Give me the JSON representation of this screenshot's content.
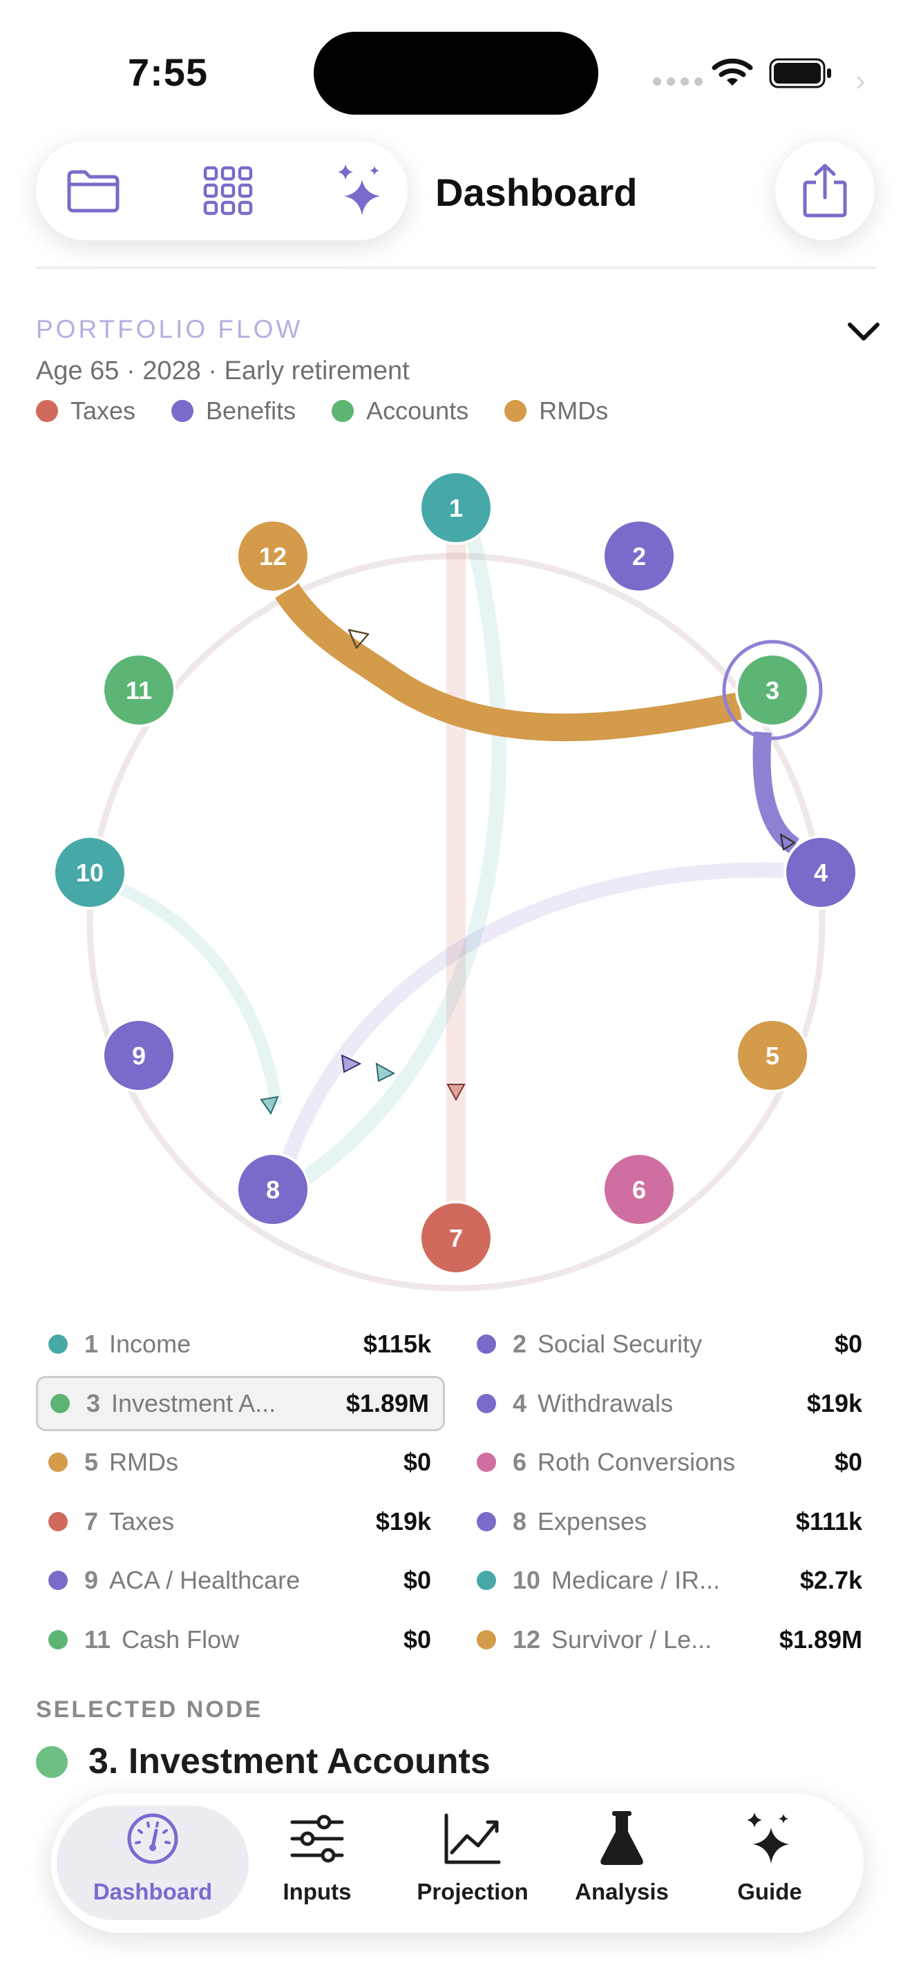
{
  "status": {
    "time": "7:55"
  },
  "header": {
    "title": "Dashboard"
  },
  "toolbar": {
    "icons": [
      "folder-icon",
      "grid-icon",
      "sparkles-icon"
    ],
    "share_icon": "share-icon"
  },
  "flow": {
    "section_title": "PORTFOLIO FLOW",
    "subtitle": "Age 65 · 2028 · Early retirement",
    "legend": [
      {
        "label": "Taxes",
        "color": "#d06a5c"
      },
      {
        "label": "Benefits",
        "color": "#7b6ac9"
      },
      {
        "label": "Accounts",
        "color": "#5cb574"
      },
      {
        "label": "RMDs",
        "color": "#d39b4a"
      }
    ]
  },
  "colors": {
    "teal": "#47a8a8",
    "purple": "#7b6ac9",
    "green": "#5cb574",
    "orange": "#d39b4a",
    "pink": "#cf6ea0",
    "red": "#d06a5c"
  },
  "chart_nodes": [
    {
      "id": "1",
      "color": "#47a8a8"
    },
    {
      "id": "2",
      "color": "#7b6ac9"
    },
    {
      "id": "3",
      "color": "#5cb574"
    },
    {
      "id": "4",
      "color": "#7b6ac9"
    },
    {
      "id": "5",
      "color": "#d39b4a"
    },
    {
      "id": "6",
      "color": "#cf6ea0"
    },
    {
      "id": "7",
      "color": "#d06a5c"
    },
    {
      "id": "8",
      "color": "#7b6ac9"
    },
    {
      "id": "9",
      "color": "#7b6ac9"
    },
    {
      "id": "10",
      "color": "#47a8a8"
    },
    {
      "id": "11",
      "color": "#5cb574"
    },
    {
      "id": "12",
      "color": "#d39b4a"
    }
  ],
  "nodes": [
    {
      "num": "1",
      "name": "Income",
      "value": "$115k",
      "color": "#47a8a8"
    },
    {
      "num": "2",
      "name": "Social Security",
      "value": "$0",
      "color": "#7b6ac9"
    },
    {
      "num": "3",
      "name": "Investment A...",
      "value": "$1.89M",
      "color": "#5cb574"
    },
    {
      "num": "4",
      "name": "Withdrawals",
      "value": "$19k",
      "color": "#7b6ac9"
    },
    {
      "num": "5",
      "name": "RMDs",
      "value": "$0",
      "color": "#d39b4a"
    },
    {
      "num": "6",
      "name": "Roth Conversions",
      "value": "$0",
      "color": "#cf6ea0"
    },
    {
      "num": "7",
      "name": "Taxes",
      "value": "$19k",
      "color": "#d06a5c"
    },
    {
      "num": "8",
      "name": "Expenses",
      "value": "$111k",
      "color": "#7b6ac9"
    },
    {
      "num": "9",
      "name": "ACA / Healthcare",
      "value": "$0",
      "color": "#7b6ac9"
    },
    {
      "num": "10",
      "name": "Medicare / IR...",
      "value": "$2.7k",
      "color": "#47a8a8"
    },
    {
      "num": "11",
      "name": "Cash Flow",
      "value": "$0",
      "color": "#5cb574"
    },
    {
      "num": "12",
      "name": "Survivor / Le...",
      "value": "$1.89M",
      "color": "#d39b4a"
    }
  ],
  "selected": {
    "label": "SELECTED NODE",
    "title": "3. Investment Accounts"
  },
  "tabs": [
    {
      "label": "Dashboard",
      "icon": "gauge-icon",
      "active": true
    },
    {
      "label": "Inputs",
      "icon": "sliders-icon",
      "active": false
    },
    {
      "label": "Projection",
      "icon": "chart-line-icon",
      "active": false
    },
    {
      "label": "Analysis",
      "icon": "flask-icon",
      "active": false
    },
    {
      "label": "Guide",
      "icon": "sparkles-icon",
      "active": false
    }
  ]
}
